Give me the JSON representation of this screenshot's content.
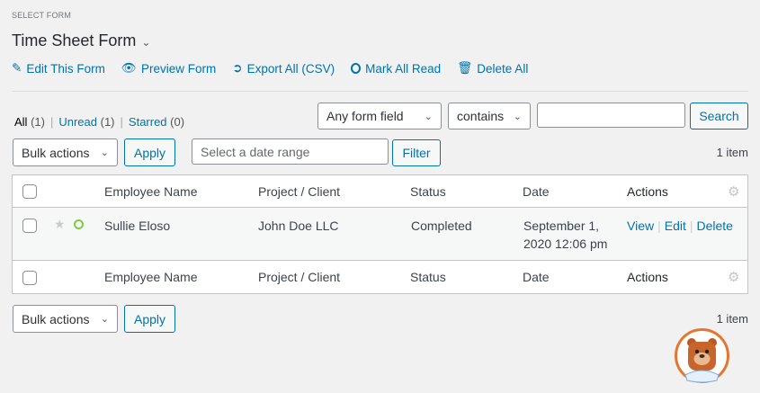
{
  "header": {
    "select_label": "SELECT FORM",
    "form_title": "Time Sheet Form"
  },
  "actions": [
    {
      "icon": "pencil-icon",
      "label": "Edit This Form"
    },
    {
      "icon": "eye-icon",
      "label": "Preview Form"
    },
    {
      "icon": "export-icon",
      "label": "Export All (CSV)"
    },
    {
      "icon": "circle-icon",
      "label": "Mark All Read"
    },
    {
      "icon": "trash-icon",
      "label": "Delete All"
    }
  ],
  "views": [
    {
      "label": "All",
      "count": "(1)"
    },
    {
      "label": "Unread",
      "count": "(1)"
    },
    {
      "label": "Starred",
      "count": "(0)"
    }
  ],
  "search": {
    "field": "Any form field",
    "operator": "contains",
    "value": "",
    "button": "Search"
  },
  "bulk": {
    "label": "Bulk actions",
    "apply": "Apply"
  },
  "date_filter": {
    "placeholder": "Select a date range",
    "button": "Filter"
  },
  "item_count": "1 item",
  "table": {
    "columns": [
      "Employee Name",
      "Project / Client",
      "Status",
      "Date",
      "Actions"
    ],
    "rows": [
      {
        "name": "Sullie Eloso",
        "project": "John Doe LLC",
        "status": "Completed",
        "date_line1": "September 1,",
        "date_line2": "2020 12:06 pm",
        "actions": [
          "View",
          "Edit",
          "Delete"
        ]
      }
    ]
  },
  "colors": {
    "link": "#0073aa",
    "unread": "#7ad03a",
    "mascot_ring": "#e27730"
  }
}
